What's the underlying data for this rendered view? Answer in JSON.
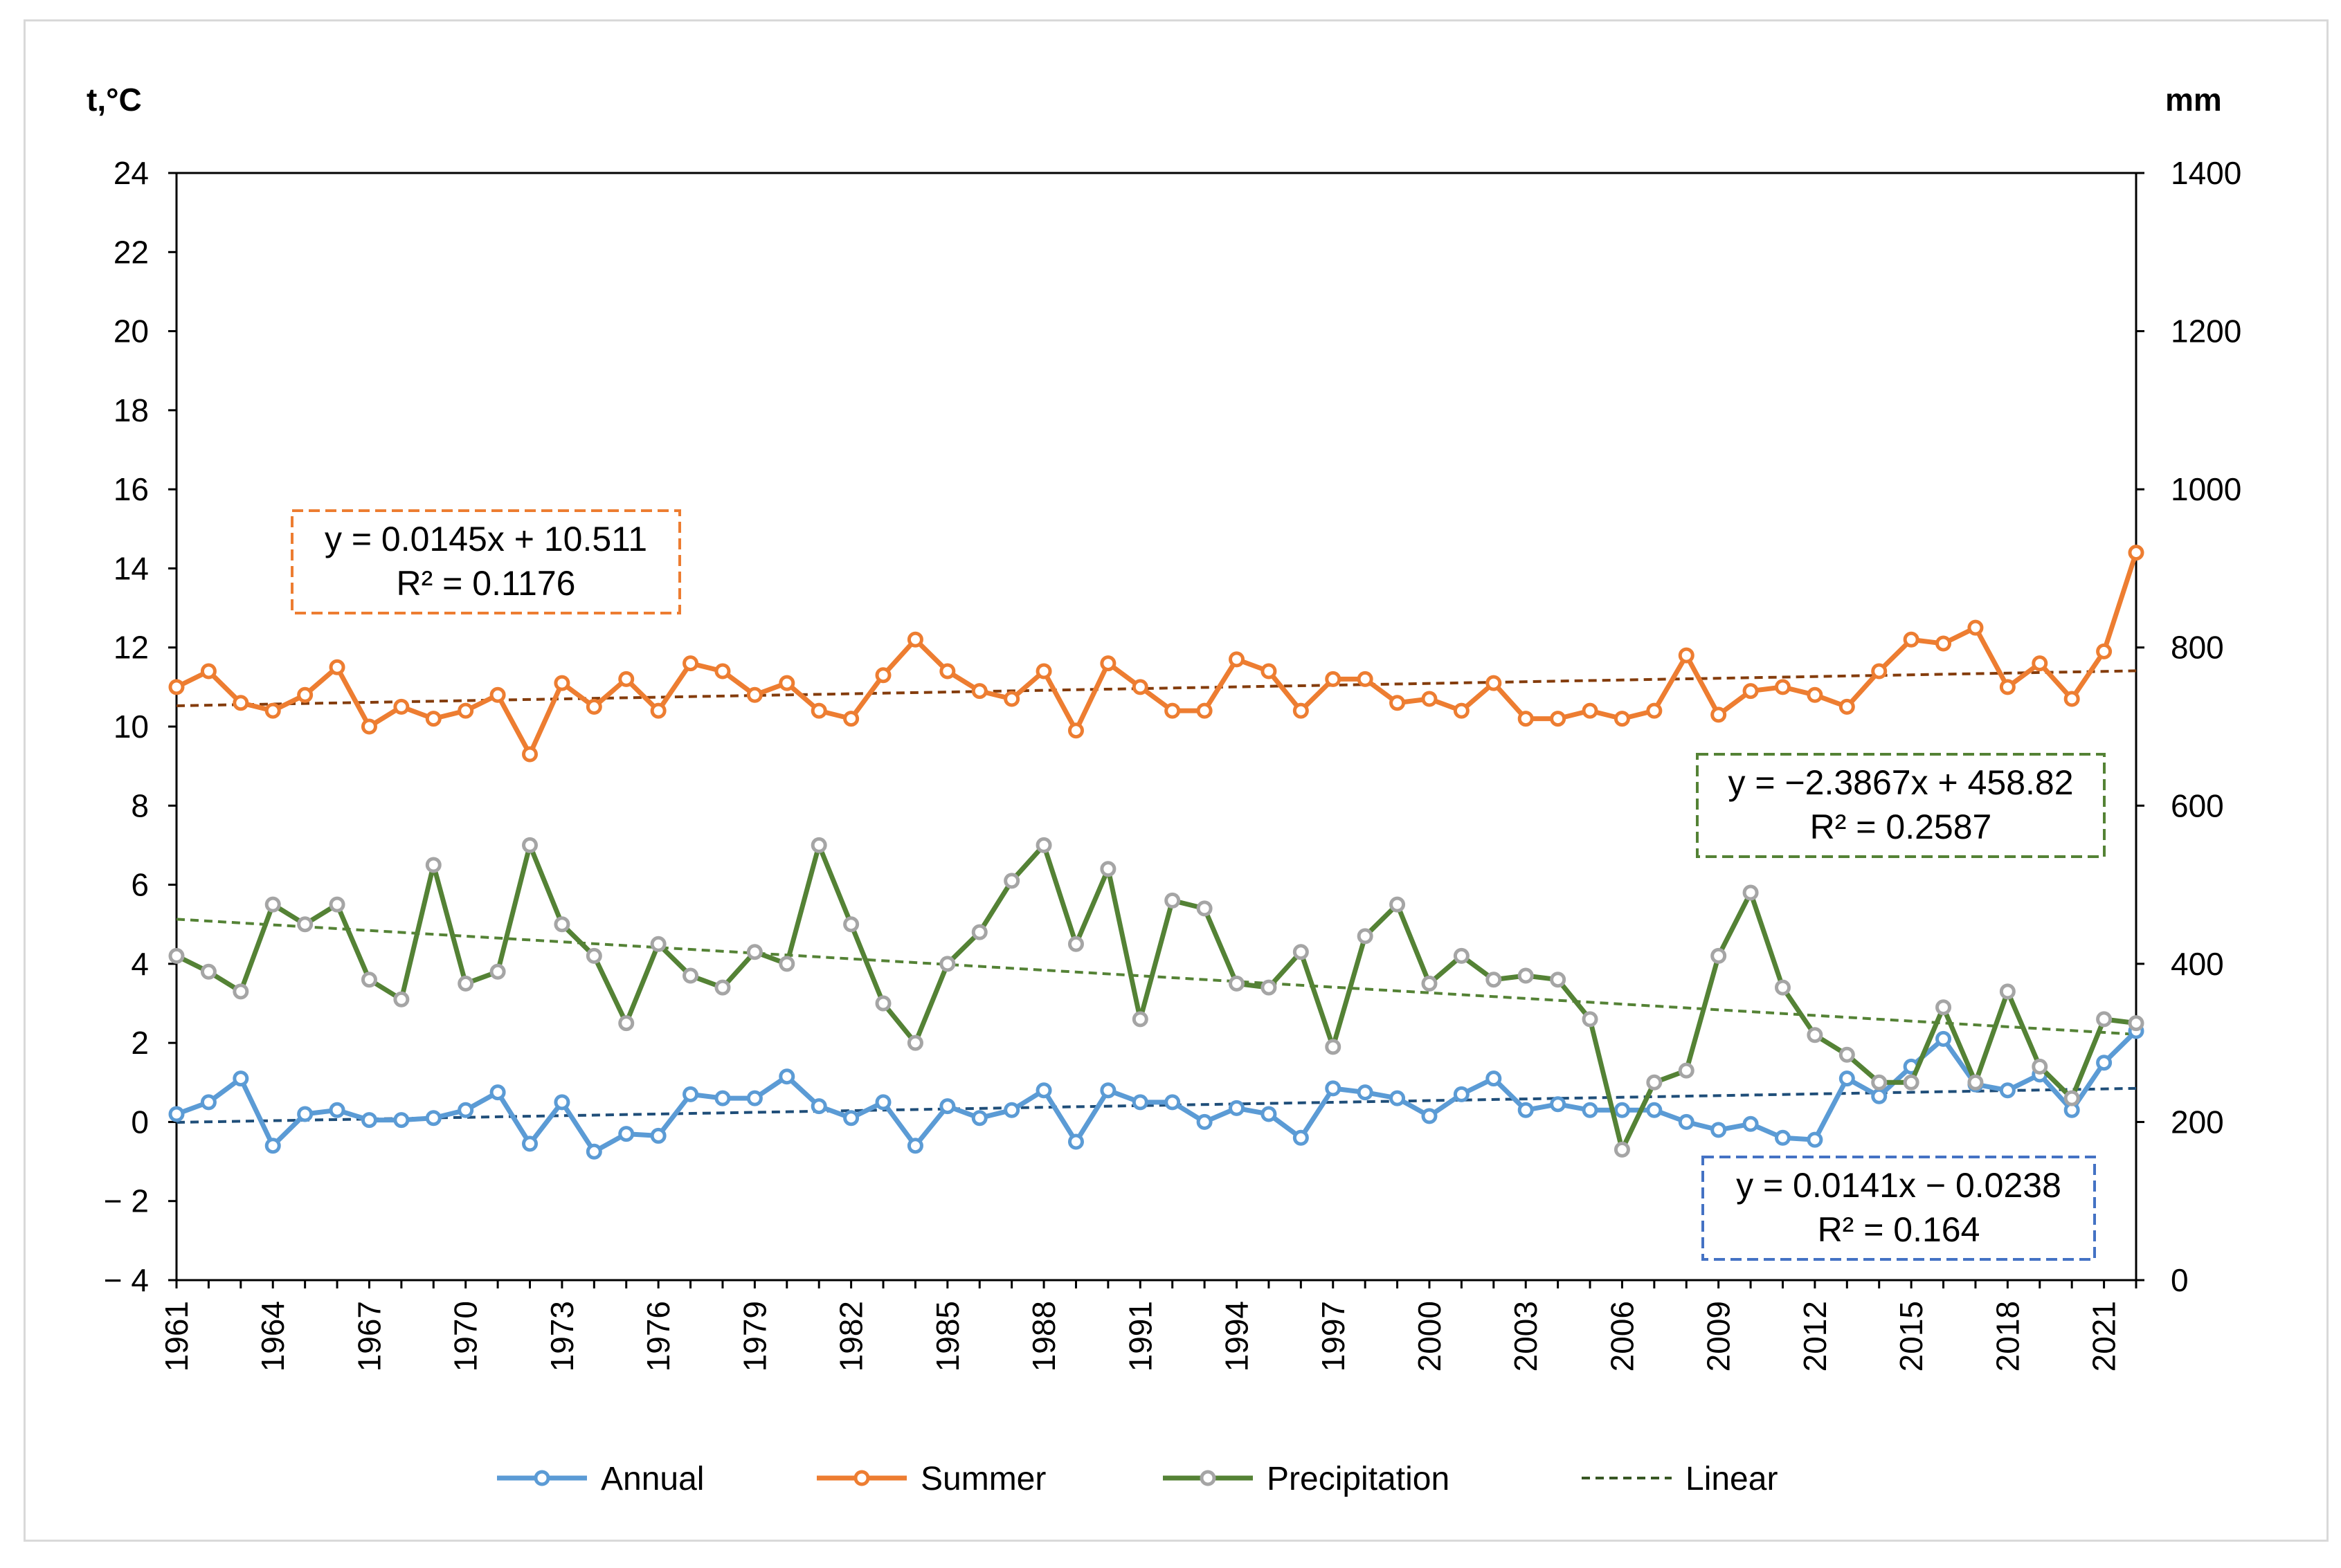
{
  "chart_data": {
    "type": "line",
    "title": "",
    "left_axis": {
      "label": "t,°C",
      "min": -4,
      "max": 24,
      "ticks": [
        "24",
        "22",
        "20",
        "18",
        "16",
        "14",
        "12",
        "10",
        "8",
        "6",
        "4",
        "2",
        "0",
        "− 2",
        "− 4"
      ]
    },
    "right_axis": {
      "label": "mm",
      "min": 0,
      "max": 1400,
      "ticks": [
        "1400",
        "1200",
        "1000",
        "800",
        "600",
        "400",
        "200",
        "0"
      ]
    },
    "x_tick_labels": [
      "1961",
      "1964",
      "1967",
      "1970",
      "1973",
      "1976",
      "1979",
      "1982",
      "1985",
      "1988",
      "1991",
      "1994",
      "1997",
      "2000",
      "2003",
      "2006",
      "2009",
      "2012",
      "2015",
      "2018",
      "2021"
    ],
    "grid": false,
    "legend_position": "bottom",
    "legend": [
      {
        "label": "Annual",
        "style": "line-marker",
        "color": "#5b9bd5"
      },
      {
        "label": "Summer",
        "style": "line-marker",
        "color": "#ed7d31"
      },
      {
        "label": "Precipitation",
        "style": "line-marker",
        "color": "#548235"
      },
      {
        "label": "Linear",
        "style": "dashed",
        "color": "#375623"
      }
    ],
    "series": [
      {
        "name": "Annual",
        "axis": "left",
        "color": "#5b9bd5",
        "marker_fill": "#ffffff",
        "marker_stroke": "#5b9bd5",
        "values": [
          0.2,
          0.5,
          1.1,
          -0.6,
          0.2,
          0.3,
          0.05,
          0.05,
          0.1,
          0.3,
          0.75,
          -0.55,
          0.5,
          -0.75,
          -0.3,
          -0.35,
          0.7,
          0.6,
          0.6,
          1.15,
          0.4,
          0.1,
          0.5,
          -0.6,
          0.4,
          0.1,
          0.3,
          0.8,
          -0.5,
          0.8,
          0.5,
          0.5,
          0.0,
          0.35,
          0.2,
          -0.4,
          0.85,
          0.75,
          0.6,
          0.15,
          0.7,
          1.1,
          0.3,
          0.45,
          0.3,
          0.3,
          0.3,
          0.0,
          -0.2,
          -0.05,
          -0.4,
          -0.45,
          1.1,
          0.65,
          1.4,
          2.1,
          0.95,
          0.8,
          1.2,
          0.3,
          1.5,
          2.3
        ]
      },
      {
        "name": "Summer",
        "axis": "left",
        "color": "#ed7d31",
        "marker_fill": "#ffffff",
        "marker_stroke": "#ed7d31",
        "values": [
          11.0,
          11.4,
          10.6,
          10.4,
          10.8,
          11.5,
          10.0,
          10.5,
          10.2,
          10.4,
          10.8,
          9.3,
          11.1,
          10.5,
          11.2,
          10.4,
          11.6,
          11.4,
          10.8,
          11.1,
          10.4,
          10.2,
          11.3,
          12.2,
          11.4,
          10.9,
          10.7,
          11.4,
          9.9,
          11.6,
          11.0,
          10.4,
          10.4,
          11.7,
          11.4,
          10.4,
          11.2,
          11.2,
          10.6,
          10.7,
          10.4,
          11.1,
          10.2,
          10.2,
          10.4,
          10.2,
          10.4,
          11.8,
          10.3,
          10.9,
          11.0,
          10.8,
          10.5,
          11.4,
          12.2,
          12.1,
          12.5,
          11.0,
          11.6,
          10.7,
          11.9,
          14.4
        ]
      },
      {
        "name": "Precipitation",
        "axis": "right",
        "color": "#548235",
        "marker_fill": "#ffffff",
        "marker_stroke": "#a5a5a5",
        "values": [
          410,
          390,
          365,
          475,
          450,
          475,
          380,
          355,
          525,
          375,
          390,
          550,
          450,
          410,
          325,
          425,
          385,
          370,
          415,
          400,
          550,
          450,
          350,
          300,
          400,
          440,
          505,
          550,
          425,
          520,
          330,
          480,
          470,
          375,
          370,
          415,
          295,
          435,
          475,
          375,
          410,
          380,
          385,
          380,
          330,
          165,
          250,
          265,
          410,
          490,
          370,
          310,
          285,
          250,
          250,
          345,
          250,
          365,
          270,
          230,
          330,
          325
        ]
      }
    ],
    "trendlines": [
      {
        "of": "Summer",
        "axis": "left",
        "slope": 0.0145,
        "intercept": 10.511,
        "color": "#843c0c"
      },
      {
        "of": "Precipitation",
        "axis": "right",
        "slope": -2.3867,
        "intercept": 458.82,
        "color": "#548235"
      },
      {
        "of": "Annual",
        "axis": "left",
        "slope": 0.0141,
        "intercept": -0.0238,
        "color": "#1f4e79"
      }
    ],
    "annotations": [
      {
        "for": "Summer",
        "line1": "y = 0.0145x + 10.511",
        "line2": "R² = 0.1176",
        "border": "#ed7d31"
      },
      {
        "for": "Precipitation",
        "line1": "y = −2.3867x + 458.82",
        "line2": "R² = 0.2587",
        "border": "#548235"
      },
      {
        "for": "Annual",
        "line1": "y = 0.0141x − 0.0238",
        "line2": "R² = 0.164",
        "border": "#4472c4"
      }
    ]
  }
}
